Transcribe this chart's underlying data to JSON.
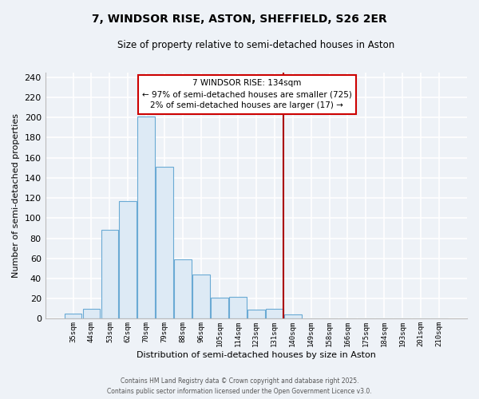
{
  "title": "7, WINDSOR RISE, ASTON, SHEFFIELD, S26 2ER",
  "subtitle": "Size of property relative to semi-detached houses in Aston",
  "xlabel": "Distribution of semi-detached houses by size in Aston",
  "ylabel": "Number of semi-detached properties",
  "bar_labels": [
    "35sqm",
    "44sqm",
    "53sqm",
    "62sqm",
    "70sqm",
    "79sqm",
    "88sqm",
    "96sqm",
    "105sqm",
    "114sqm",
    "123sqm",
    "131sqm",
    "140sqm",
    "149sqm",
    "158sqm",
    "166sqm",
    "175sqm",
    "184sqm",
    "193sqm",
    "201sqm",
    "210sqm"
  ],
  "bar_values": [
    5,
    10,
    88,
    117,
    201,
    151,
    59,
    44,
    21,
    22,
    9,
    10,
    4,
    0,
    0,
    0,
    0,
    0,
    0,
    0,
    0
  ],
  "bar_color": "#ddeaf5",
  "bar_edge_color": "#6aaad4",
  "vline_color": "#aa0000",
  "annotation_title": "7 WINDSOR RISE: 134sqm",
  "annotation_line1": "← 97% of semi-detached houses are smaller (725)",
  "annotation_line2": "2% of semi-detached houses are larger (17) →",
  "annotation_box_color": "white",
  "annotation_box_edge": "#cc0000",
  "ylim": [
    0,
    245
  ],
  "yticks": [
    0,
    20,
    40,
    60,
    80,
    100,
    120,
    140,
    160,
    180,
    200,
    220,
    240
  ],
  "footer1": "Contains HM Land Registry data © Crown copyright and database right 2025.",
  "footer2": "Contains public sector information licensed under the Open Government Licence v3.0.",
  "background_color": "#eef2f7",
  "grid_color": "#ffffff"
}
